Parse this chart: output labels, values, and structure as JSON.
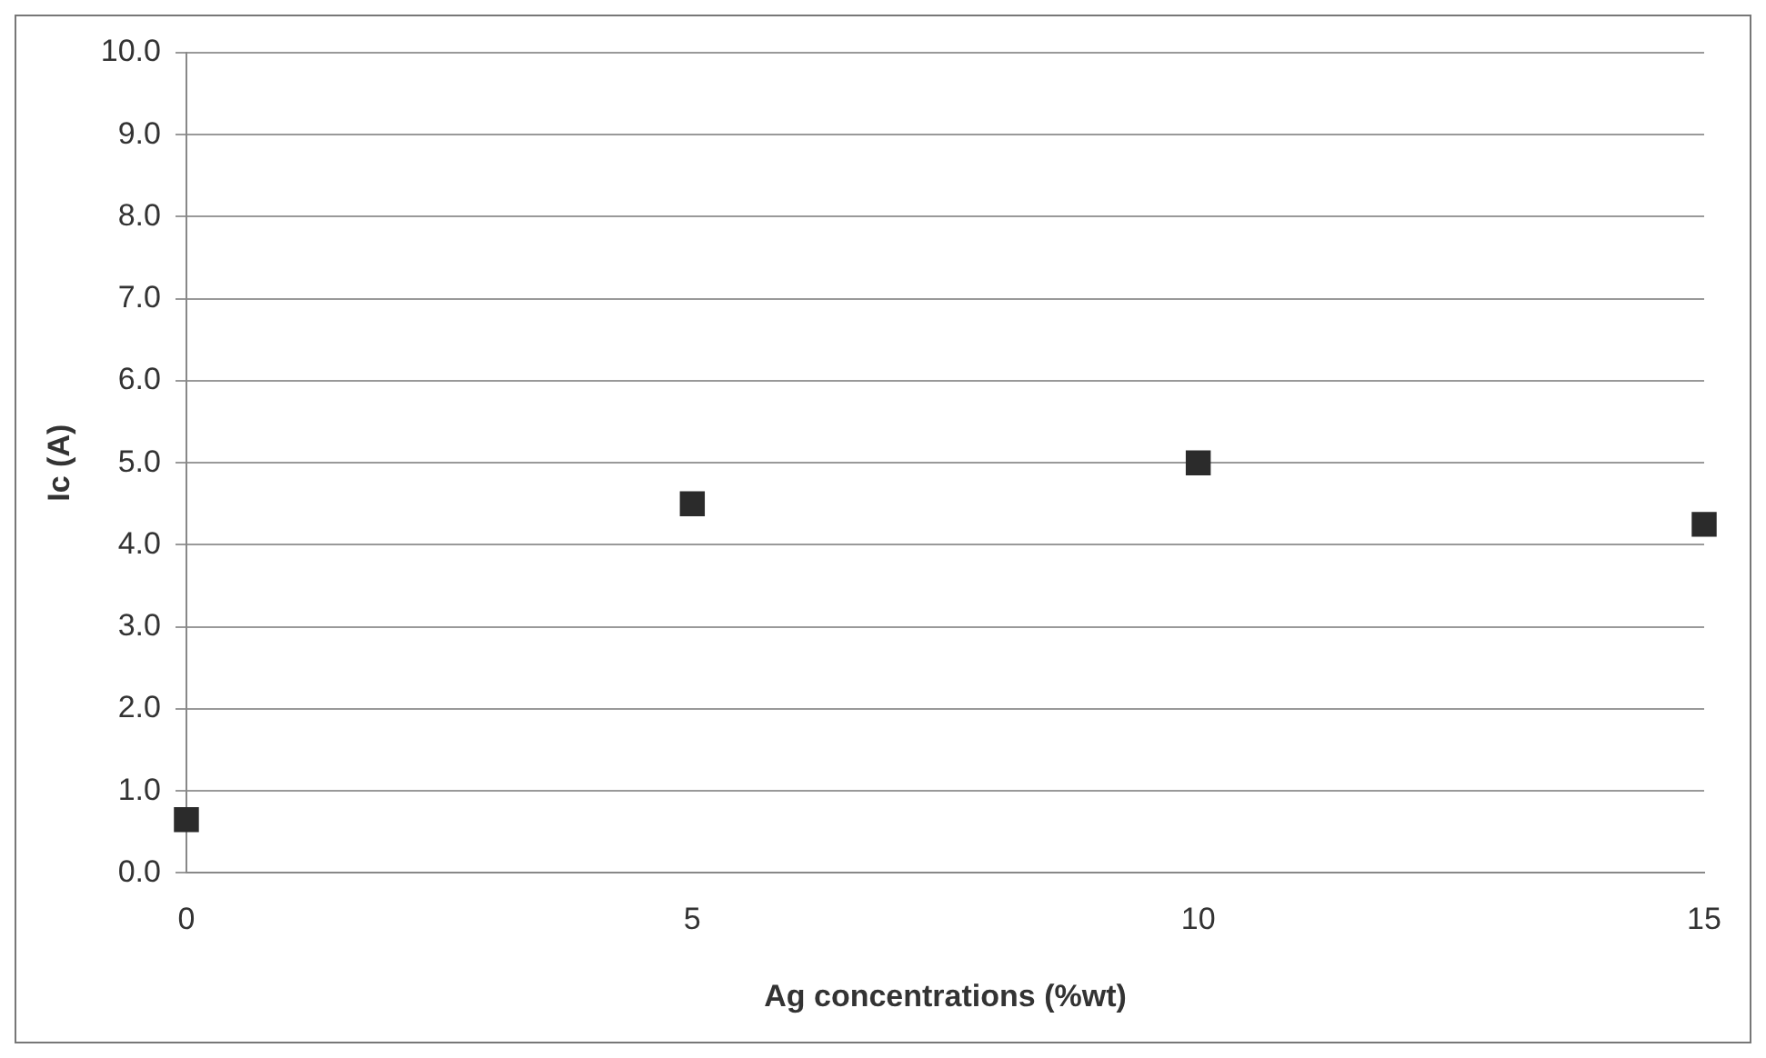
{
  "chart_data": {
    "type": "scatter",
    "xlabel": "Ag concentrations (%wt)",
    "ylabel": "Ic (A)",
    "x": [
      0,
      5,
      10,
      15
    ],
    "series": [
      {
        "color": "#2b2b2b",
        "values": [
          0.65,
          4.5,
          5.0,
          4.25
        ]
      }
    ],
    "xlim": [
      0,
      15
    ],
    "xticks": [
      0,
      5,
      10,
      15
    ],
    "ylim": [
      0,
      10
    ],
    "yticks": [
      {
        "value": 0,
        "label": "0.0"
      },
      {
        "value": 1,
        "label": "1.0"
      },
      {
        "value": 2,
        "label": "2.0"
      },
      {
        "value": 3,
        "label": "3.0"
      },
      {
        "value": 4,
        "label": "4.0"
      },
      {
        "value": 5,
        "label": "5.0"
      },
      {
        "value": 6,
        "label": "6.0"
      },
      {
        "value": 7,
        "label": "7.0"
      },
      {
        "value": 8,
        "label": "8.0"
      },
      {
        "value": 9,
        "label": "9.0"
      },
      {
        "value": 10,
        "label": "10.0"
      }
    ],
    "grid": "y",
    "marker": "square",
    "legend": false
  }
}
